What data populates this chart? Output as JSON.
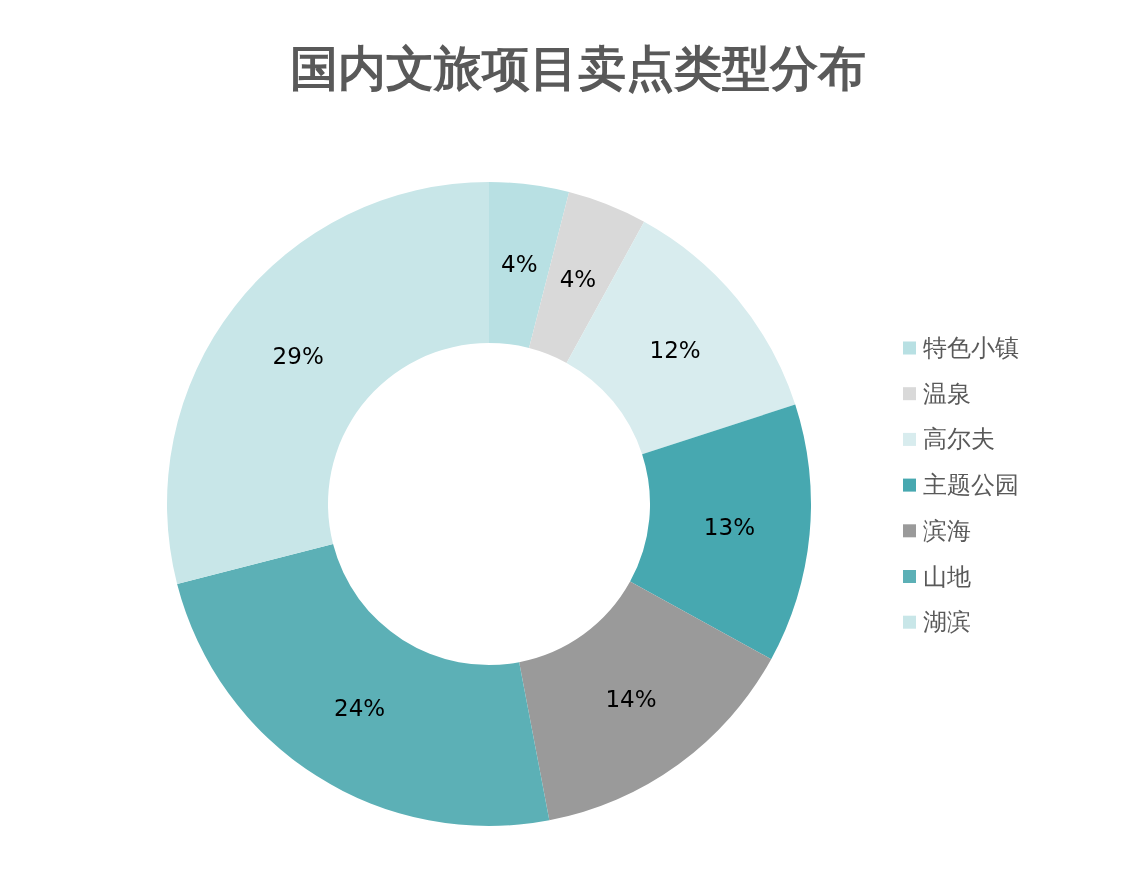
{
  "chart_data": {
    "type": "donut",
    "title": "国内文旅项目卖点类型分布",
    "categories": [
      "特色小镇",
      "温泉",
      "高尔夫",
      "主题公园",
      "滨海",
      "山地",
      "湖滨"
    ],
    "values": [
      4,
      4,
      12,
      13,
      14,
      24,
      29
    ],
    "colors": [
      "#b8e0e3",
      "#d9d9d9",
      "#d8ecee",
      "#47a8b0",
      "#9a9a9a",
      "#5cb0b6",
      "#c8e6e8"
    ],
    "value_labels": [
      "4%",
      "4%",
      "12%",
      "13%",
      "14%",
      "24%",
      "29%"
    ],
    "legend": "right"
  }
}
